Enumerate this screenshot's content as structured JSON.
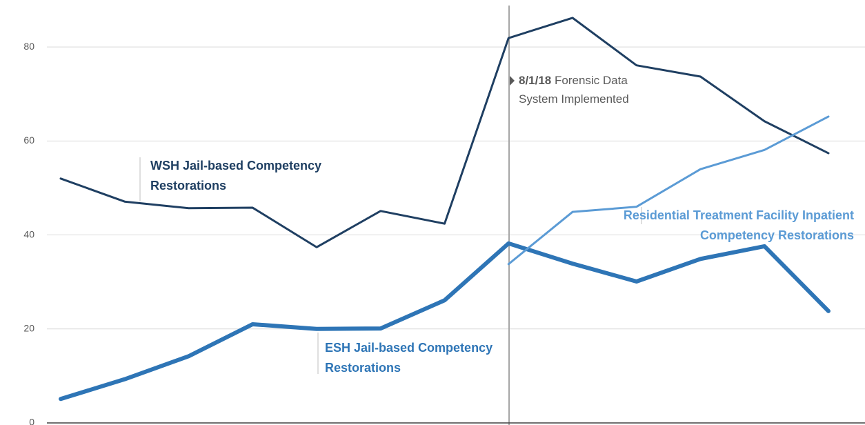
{
  "chart_data": {
    "type": "line",
    "categories": [
      null,
      null,
      null,
      null,
      null,
      null,
      null,
      null,
      null,
      null,
      null,
      null,
      null
    ],
    "series": [
      {
        "name": "WSH Jail-based Competency Restorations",
        "color": "#1f3f62",
        "values": [
          52.0,
          47.1,
          45.7,
          45.8,
          37.4,
          45.1,
          42.4,
          81.9,
          86.2,
          76.1,
          73.7,
          64.2,
          57.4
        ]
      },
      {
        "name": "ESH Jail-based Competency Restorations",
        "color": "#2e75b6",
        "values": [
          5.1,
          9.3,
          14.2,
          21.0,
          20.0,
          20.1,
          26.1,
          38.2,
          33.9,
          30.1,
          34.9,
          37.6,
          23.8
        ]
      },
      {
        "name": "Residential Treatment Facility Inpatient Competency Restorations",
        "color": "#5b9bd5",
        "values": [
          null,
          null,
          null,
          null,
          null,
          null,
          null,
          33.8,
          44.9,
          46.0,
          54.0,
          58.1,
          65.2
        ]
      }
    ],
    "annotation": {
      "date": "8/1/18",
      "text": "Forensic Data System Implemented"
    },
    "ylim": [
      0,
      90
    ],
    "yticks": [
      0,
      20,
      40,
      60,
      80
    ],
    "grid": true
  }
}
